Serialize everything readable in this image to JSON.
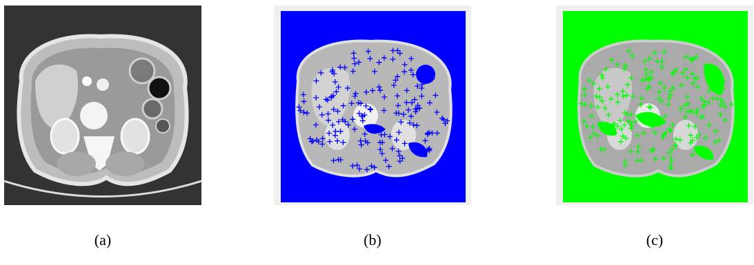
{
  "panels": [
    {
      "id": "a",
      "caption": "(a)",
      "overlay": "none",
      "marker": "none"
    },
    {
      "id": "b",
      "caption": "(b)",
      "overlay": "#0000ff",
      "marker": "+"
    },
    {
      "id": "c",
      "caption": "(c)",
      "overlay": "#00ff00",
      "marker": "+"
    }
  ],
  "colors": {
    "frame": "#f0f0f0",
    "ct_background": "#333333",
    "blue": "#0000ff",
    "green": "#00ff00"
  }
}
